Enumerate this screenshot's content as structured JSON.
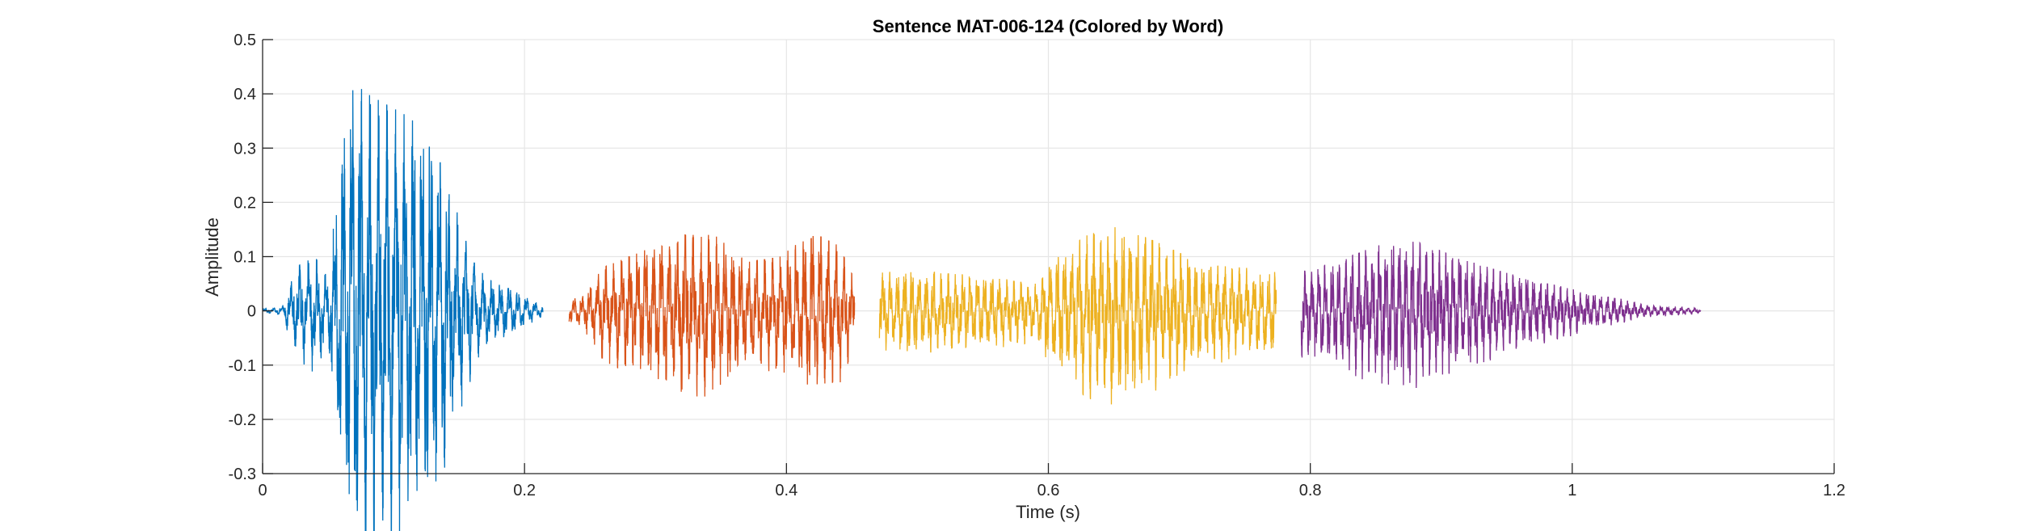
{
  "chart_data": {
    "type": "line",
    "title": "Sentence MAT-006-124 (Colored by Word)",
    "xlabel": "Time (s)",
    "ylabel": "Amplitude",
    "xlim": [
      0,
      1.2
    ],
    "ylim": [
      -0.3,
      0.5
    ],
    "xticks": [
      0,
      0.2,
      0.4,
      0.6,
      0.8,
      1,
      1.2
    ],
    "xtick_labels": [
      "0",
      "0.2",
      "0.4",
      "0.6",
      "0.8",
      "1",
      "1.2"
    ],
    "yticks": [
      -0.3,
      -0.2,
      -0.1,
      0,
      0.1,
      0.2,
      0.3,
      0.4,
      0.5
    ],
    "ytick_labels": [
      "-0.3",
      "-0.2",
      "-0.1",
      "0",
      "0.1",
      "0.2",
      "0.3",
      "0.4",
      "0.5"
    ],
    "grid": true,
    "legend": "none",
    "series": [
      {
        "color": "#0072BD",
        "x_start": 0.0,
        "x_end": 0.214,
        "envelope": [
          [
            0.0,
            0.003
          ],
          [
            0.015,
            0.008
          ],
          [
            0.025,
            0.08
          ],
          [
            0.04,
            0.1
          ],
          [
            0.05,
            0.06
          ],
          [
            0.06,
            0.3
          ],
          [
            0.07,
            0.42
          ],
          [
            0.08,
            0.4
          ],
          [
            0.095,
            0.38
          ],
          [
            0.11,
            0.36
          ],
          [
            0.125,
            0.33
          ],
          [
            0.14,
            0.25
          ],
          [
            0.155,
            0.13
          ],
          [
            0.17,
            0.06
          ],
          [
            0.19,
            0.04
          ],
          [
            0.214,
            0.01
          ]
        ]
      },
      {
        "color": "#D95319",
        "x_start": 0.234,
        "x_end": 0.452,
        "envelope": [
          [
            0.234,
            0.02
          ],
          [
            0.245,
            0.03
          ],
          [
            0.26,
            0.08
          ],
          [
            0.29,
            0.11
          ],
          [
            0.32,
            0.14
          ],
          [
            0.345,
            0.14
          ],
          [
            0.37,
            0.09
          ],
          [
            0.395,
            0.1
          ],
          [
            0.42,
            0.145
          ],
          [
            0.44,
            0.12
          ],
          [
            0.452,
            0.06
          ]
        ]
      },
      {
        "color": "#EDB120",
        "x_start": 0.471,
        "x_end": 0.774,
        "envelope": [
          [
            0.471,
            0.07
          ],
          [
            0.49,
            0.075
          ],
          [
            0.52,
            0.07
          ],
          [
            0.56,
            0.06
          ],
          [
            0.59,
            0.05
          ],
          [
            0.6,
            0.09
          ],
          [
            0.63,
            0.14
          ],
          [
            0.65,
            0.155
          ],
          [
            0.68,
            0.13
          ],
          [
            0.72,
            0.085
          ],
          [
            0.774,
            0.075
          ]
        ]
      },
      {
        "color": "#7E2F8E",
        "x_start": 0.793,
        "x_end": 1.098,
        "envelope": [
          [
            0.793,
            0.075
          ],
          [
            0.82,
            0.09
          ],
          [
            0.85,
            0.12
          ],
          [
            0.88,
            0.13
          ],
          [
            0.91,
            0.1
          ],
          [
            0.95,
            0.07
          ],
          [
            0.99,
            0.045
          ],
          [
            1.03,
            0.025
          ],
          [
            1.06,
            0.01
          ],
          [
            1.098,
            0.005
          ]
        ]
      }
    ]
  }
}
